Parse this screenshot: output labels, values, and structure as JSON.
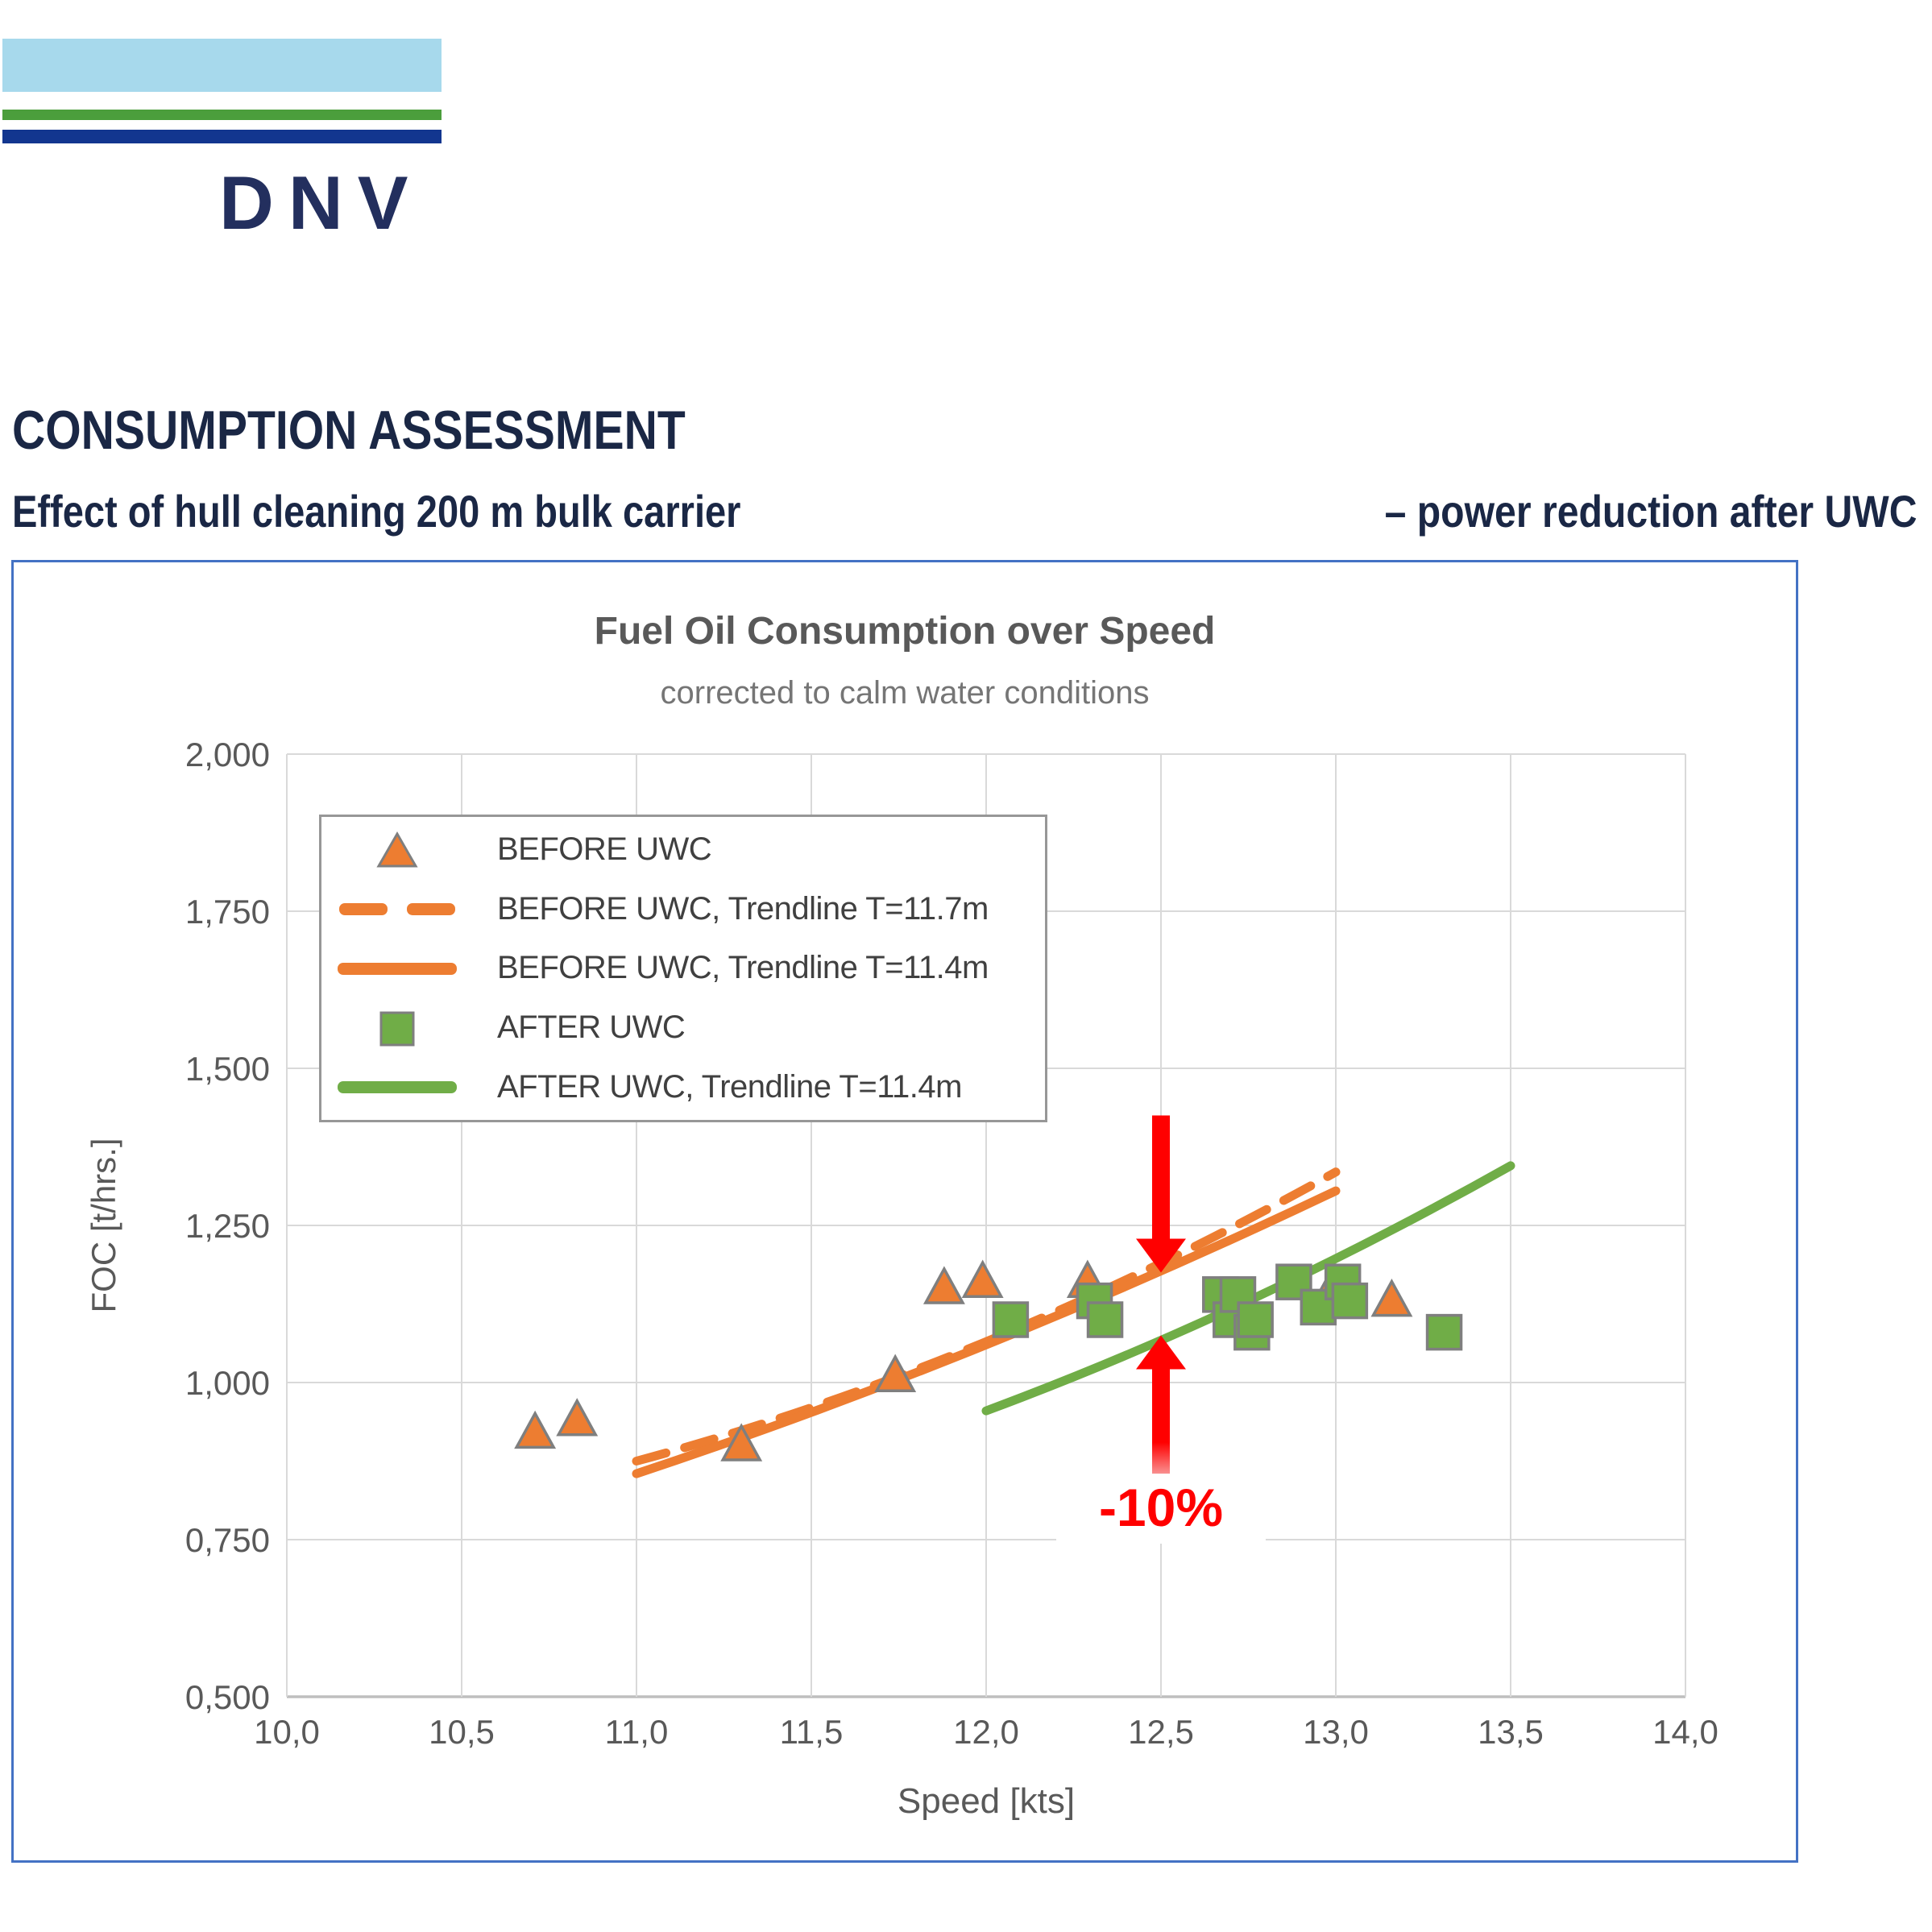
{
  "logo": {
    "brand": "DNV",
    "colors": {
      "sky": "#A7D9EC",
      "green": "#4B9E3C",
      "navy_bar": "#12368F",
      "text": "#232F5E"
    }
  },
  "headings": {
    "title": "CONSUMPTION ASSESSMENT",
    "subtitle_left": "Effect of hull cleaning 200 m bulk carrier",
    "subtitle_right": "– power reduction after UWC",
    "color": "#1A2745"
  },
  "theme": {
    "frame_border": "#4472C4",
    "grid": "#D9D9D9",
    "axis_line": "#BFBFBF",
    "tick_text": "#595959",
    "title_text": "#595959",
    "subtitle_text": "#757575",
    "legend_text": "#404040",
    "legend_border": "#979797",
    "marker_stroke": "#7F7F7F",
    "before_color": "#ED7D31",
    "after_color": "#70AD47",
    "annotation_red": "#FF0000"
  },
  "chart_data": {
    "type": "scatter",
    "title": "Fuel Oil Consumption over Speed",
    "subtitle": "corrected to calm water conditions",
    "xlabel": "Speed [kts]",
    "ylabel": "FOC [t/hrs.]",
    "xlim": [
      10.0,
      14.0
    ],
    "ylim": [
      0.5,
      2.0
    ],
    "grid": true,
    "legend_position": "upper-left-inside",
    "x_ticks": [
      10.0,
      10.5,
      11.0,
      11.5,
      12.0,
      12.5,
      13.0,
      13.5,
      14.0
    ],
    "x_tick_labels": [
      "10,0",
      "10,5",
      "11,0",
      "11,5",
      "12,0",
      "12,5",
      "13,0",
      "13,5",
      "14,0"
    ],
    "y_ticks": [
      0.5,
      0.75,
      1.0,
      1.25,
      1.5,
      1.75,
      2.0
    ],
    "y_tick_labels": [
      "0,500",
      "0,750",
      "1,000",
      "1,250",
      "1,500",
      "1,750",
      "2,000"
    ],
    "series": [
      {
        "name": "BEFORE UWC",
        "kind": "scatter",
        "marker": "triangle",
        "color": "#ED7D31",
        "points": [
          [
            10.71,
            0.92
          ],
          [
            10.83,
            0.94
          ],
          [
            11.3,
            0.9
          ],
          [
            11.74,
            1.01
          ],
          [
            11.88,
            1.15
          ],
          [
            11.99,
            1.16
          ],
          [
            12.29,
            1.16
          ],
          [
            12.98,
            1.14
          ],
          [
            13.16,
            1.13
          ]
        ]
      },
      {
        "name": "BEFORE UWC, Trendline T=11.7m",
        "kind": "trendline",
        "style": "dashed",
        "color": "#ED7D31",
        "points": [
          [
            11.0,
            0.875
          ],
          [
            12.0,
            1.065
          ],
          [
            13.0,
            1.335
          ]
        ]
      },
      {
        "name": "BEFORE UWC, Trendline T=11.4m",
        "kind": "trendline",
        "style": "solid",
        "color": "#ED7D31",
        "points": [
          [
            11.0,
            0.855
          ],
          [
            12.0,
            1.06
          ],
          [
            13.0,
            1.305
          ]
        ]
      },
      {
        "name": "AFTER UWC",
        "kind": "scatter",
        "marker": "square",
        "color": "#70AD47",
        "points": [
          [
            12.07,
            1.1
          ],
          [
            12.31,
            1.13
          ],
          [
            12.34,
            1.1
          ],
          [
            12.67,
            1.14
          ],
          [
            12.7,
            1.1
          ],
          [
            12.72,
            1.14
          ],
          [
            12.76,
            1.08
          ],
          [
            12.77,
            1.1
          ],
          [
            12.88,
            1.16
          ],
          [
            12.95,
            1.12
          ],
          [
            13.02,
            1.16
          ],
          [
            13.04,
            1.13
          ],
          [
            13.31,
            1.08
          ]
        ]
      },
      {
        "name": "AFTER UWC, Trendline T=11.4m",
        "kind": "trendline",
        "style": "solid",
        "color": "#70AD47",
        "points": [
          [
            12.0,
            0.955
          ],
          [
            12.75,
            1.13
          ],
          [
            13.5,
            1.345
          ]
        ]
      }
    ],
    "annotation": {
      "label": "-10%",
      "x": 12.5,
      "color": "#FF0000",
      "down_arrow": {
        "from_y": 1.425,
        "to_y": 1.175
      },
      "up_arrow": {
        "from_y": 0.855,
        "to_y": 1.075
      }
    }
  }
}
